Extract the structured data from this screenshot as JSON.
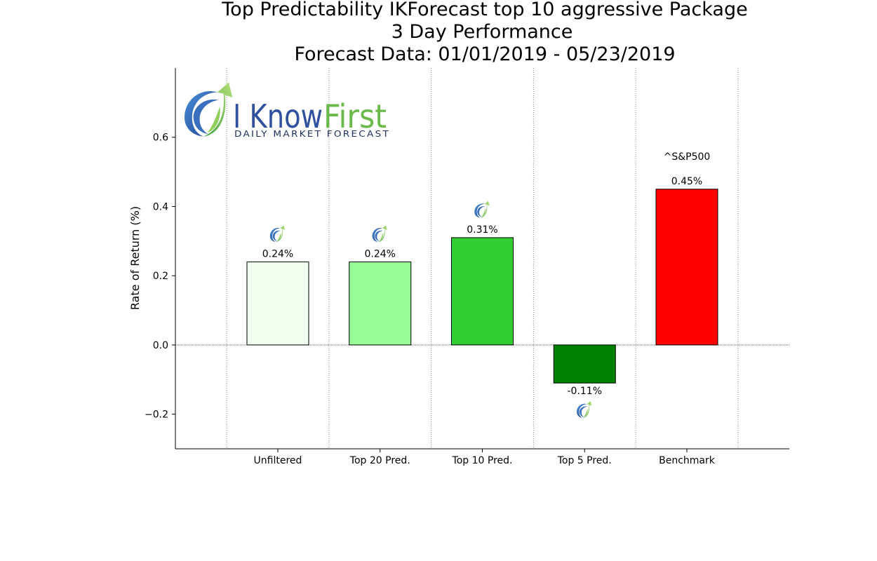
{
  "title": {
    "line1": "Top Predictability IKForecast top 10 aggressive Package",
    "line2": "3 Day Performance",
    "line3": "Forecast Data: 01/01/2019 - 05/23/2019"
  },
  "logo": {
    "brand_left": "I Know",
    "brand_right": "First",
    "tagline": "Daily Market Forecast",
    "colors": {
      "blue": "#2f4f9f",
      "green": "#6ab94a"
    }
  },
  "chart_data": {
    "type": "bar",
    "categories": [
      "Unfiltered",
      "Top 20 Pred.",
      "Top 10 Pred.",
      "Top 5 Pred.",
      "Benchmark"
    ],
    "values": [
      0.24,
      0.24,
      0.31,
      -0.11,
      0.45
    ],
    "value_labels": [
      "0.24%",
      "0.24%",
      "0.31%",
      "-0.11%",
      "0.45%"
    ],
    "bar_colors": [
      "#f0fff0",
      "#98fb98",
      "#32cd32",
      "#008000",
      "#ff0000"
    ],
    "benchmark_name": "^S&P500",
    "ylabel": "Rate of Return (%)",
    "xlabel": "",
    "ylim": [
      -0.3,
      0.8
    ],
    "yticks": [
      -0.2,
      0.0,
      0.2,
      0.4,
      0.6
    ],
    "ytick_labels": [
      "−0.2",
      "0.0",
      "0.2",
      "0.4",
      "0.6"
    ],
    "grid": "vertical dotted",
    "logo_markers_on": [
      "Unfiltered",
      "Top 20 Pred.",
      "Top 10 Pred.",
      "Top 5 Pred."
    ]
  }
}
